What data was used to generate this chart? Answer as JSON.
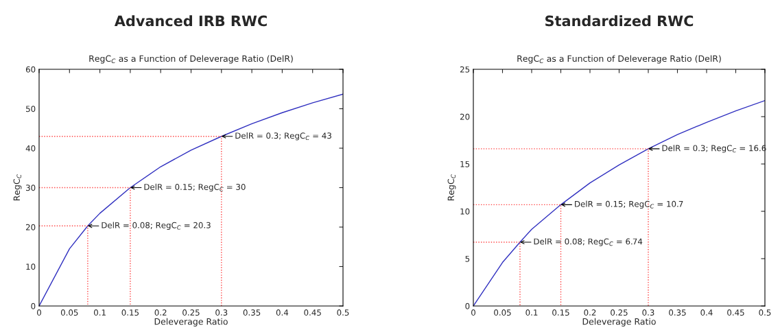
{
  "chart_data": [
    {
      "type": "line",
      "title": "Advanced IRB RWC",
      "subtitle": "RegC$_{C}$ as a Function of Deleverage Ratio (DelR)",
      "xlabel": "Deleverage Ratio",
      "ylabel": "RegC$_{C}$",
      "xlim": [
        0,
        0.5
      ],
      "xticks": [
        0,
        0.05,
        0.1,
        0.15,
        0.2,
        0.25,
        0.3,
        0.35,
        0.4,
        0.45,
        0.5
      ],
      "ylim": [
        0,
        60
      ],
      "yticks": [
        0,
        10,
        20,
        30,
        40,
        50,
        60
      ],
      "grid": false,
      "legend": false,
      "series": [
        {
          "color": "#3030c0",
          "x": [
            0,
            0.05,
            0.08,
            0.1,
            0.15,
            0.2,
            0.25,
            0.3,
            0.35,
            0.4,
            0.45,
            0.5
          ],
          "values": [
            0,
            14.5,
            20.3,
            23.5,
            30,
            35.3,
            39.5,
            43,
            46.2,
            49,
            51.5,
            53.7
          ]
        },
        {
          "color": "#ff4040",
          "line_style": "dotted",
          "x": [
            0,
            0.08,
            0.08
          ],
          "values": [
            20.3,
            20.3,
            0
          ]
        },
        {
          "color": "#ff4040",
          "line_style": "dotted",
          "x": [
            0,
            0.15,
            0.15
          ],
          "values": [
            30,
            30,
            0
          ]
        },
        {
          "color": "#ff4040",
          "line_style": "dotted",
          "x": [
            0,
            0.3,
            0.3
          ],
          "values": [
            43,
            43,
            0
          ]
        }
      ],
      "annotations": [
        {
          "text": "DelR = 0.08; RegC$_{C}$ = 20.3",
          "x": 0.08,
          "y": 20.3
        },
        {
          "text": "DelR = 0.15; RegC$_{C}$ = 30",
          "x": 0.15,
          "y": 30
        },
        {
          "text": "DelR = 0.3; RegC$_{C}$ = 43",
          "x": 0.3,
          "y": 43
        }
      ]
    },
    {
      "type": "line",
      "title": "Standardized RWC",
      "subtitle": "RegC$_{C}$ as a Function of Deleverage Ratio (DelR)",
      "xlabel": "Deleverage Ratio",
      "ylabel": "RegC$_{C}$",
      "xlim": [
        0,
        0.5
      ],
      "xticks": [
        0,
        0.05,
        0.1,
        0.15,
        0.2,
        0.25,
        0.3,
        0.35,
        0.4,
        0.45,
        0.5
      ],
      "ylim": [
        0,
        25
      ],
      "yticks": [
        0,
        5,
        10,
        15,
        20,
        25
      ],
      "grid": false,
      "legend": false,
      "series": [
        {
          "color": "#3030c0",
          "x": [
            0,
            0.05,
            0.08,
            0.1,
            0.15,
            0.2,
            0.25,
            0.3,
            0.35,
            0.4,
            0.45,
            0.5
          ],
          "values": [
            0,
            4.6,
            6.74,
            8.1,
            10.7,
            13,
            14.9,
            16.6,
            18.1,
            19.4,
            20.6,
            21.7
          ]
        },
        {
          "color": "#ff4040",
          "line_style": "dotted",
          "x": [
            0,
            0.08,
            0.08
          ],
          "values": [
            6.74,
            6.74,
            0
          ]
        },
        {
          "color": "#ff4040",
          "line_style": "dotted",
          "x": [
            0,
            0.15,
            0.15
          ],
          "values": [
            10.7,
            10.7,
            0
          ]
        },
        {
          "color": "#ff4040",
          "line_style": "dotted",
          "x": [
            0,
            0.3,
            0.3
          ],
          "values": [
            16.6,
            16.6,
            0
          ]
        }
      ],
      "annotations": [
        {
          "text": "DelR = 0.08; RegC$_{C}$ = 6.74",
          "x": 0.08,
          "y": 6.74
        },
        {
          "text": "DelR = 0.15; RegC$_{C}$ = 10.7",
          "x": 0.15,
          "y": 10.7
        },
        {
          "text": "DelR = 0.3; RegC$_{C}$ = 16.6",
          "x": 0.3,
          "y": 16.6
        }
      ]
    }
  ]
}
